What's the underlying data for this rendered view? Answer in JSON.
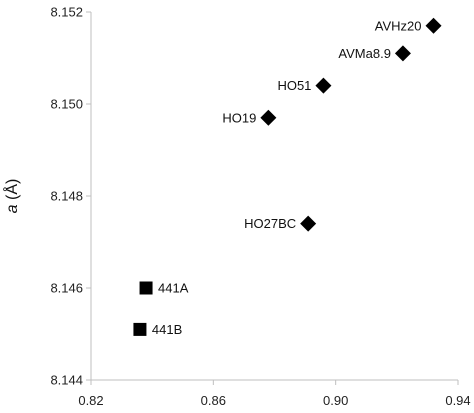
{
  "chart_data": {
    "type": "scatter",
    "title": "",
    "xlabel": "",
    "ylabel": "a (Å)",
    "ylabel_var": "a",
    "ylabel_unit": " (Å)",
    "xlim": [
      0.82,
      0.94
    ],
    "ylim": [
      8.144,
      8.152
    ],
    "x_ticks": [
      0.82,
      0.86,
      0.9,
      0.94
    ],
    "x_tick_labels": [
      "0.82",
      "0.86",
      "0.90",
      "0.94"
    ],
    "y_ticks": [
      8.144,
      8.146,
      8.148,
      8.15,
      8.152
    ],
    "y_tick_labels": [
      "8.144",
      "8.146",
      "8.148",
      "8.150",
      "8.152"
    ],
    "grid": false,
    "colors": {
      "marker": "#000000",
      "axis": "#bfbfbf"
    },
    "series": [
      {
        "marker": "diamond",
        "points": [
          {
            "label": "AVHz20",
            "x": 0.932,
            "y": 8.1517
          },
          {
            "label": "AVMa8.9",
            "x": 0.922,
            "y": 8.1511
          },
          {
            "label": "HO51",
            "x": 0.896,
            "y": 8.1504
          },
          {
            "label": "HO19",
            "x": 0.878,
            "y": 8.1497
          },
          {
            "label": "HO27BC",
            "x": 0.891,
            "y": 8.1474
          }
        ]
      },
      {
        "marker": "square",
        "points": [
          {
            "label": "441A",
            "x": 0.838,
            "y": 8.146
          },
          {
            "label": "441B",
            "x": 0.836,
            "y": 8.1451
          }
        ]
      }
    ]
  }
}
